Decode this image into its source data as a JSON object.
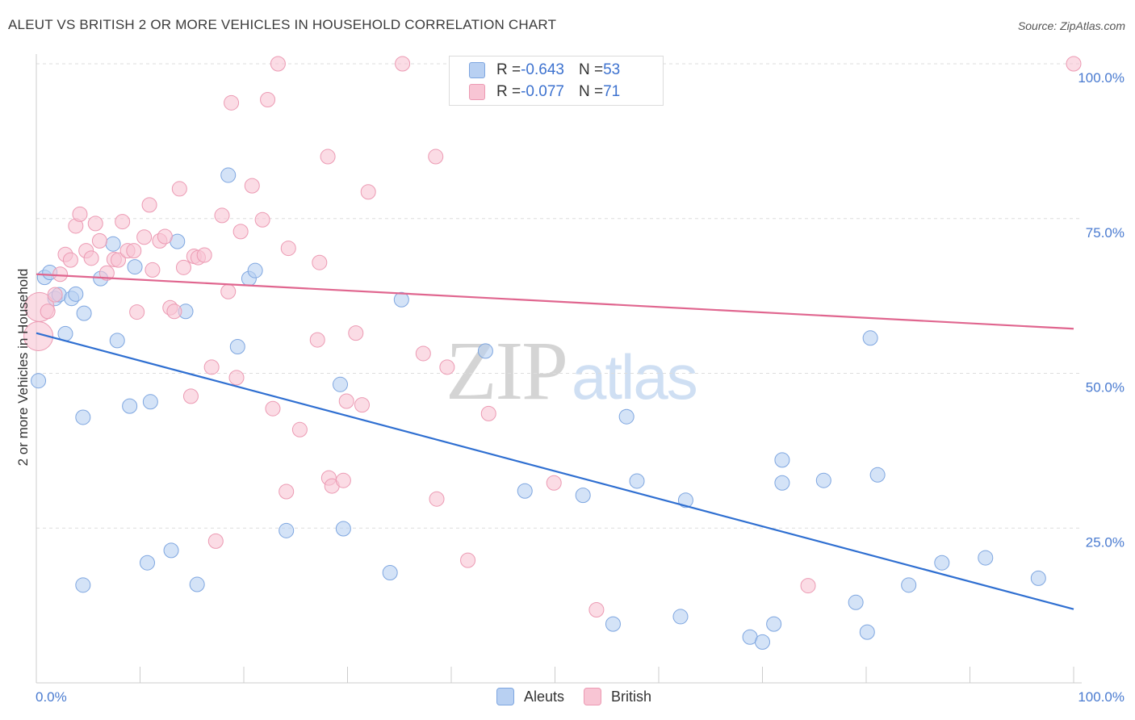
{
  "header": {
    "title": "ALEUT VS BRITISH 2 OR MORE VEHICLES IN HOUSEHOLD CORRELATION CHART",
    "source": "Source: ZipAtlas.com"
  },
  "legend": {
    "rows": [
      {
        "r_label": "R = ",
        "r_value": "-0.643",
        "n_label": "N = ",
        "n_value": "53"
      },
      {
        "r_label": "R = ",
        "r_value": "-0.077",
        "n_label": "N = ",
        "n_value": "71"
      }
    ],
    "items": [
      "Aleuts",
      "British"
    ]
  },
  "watermark": {
    "part1": "ZIP",
    "part2": "atlas"
  },
  "colors": {
    "aleuts_fill": "#b8d0f2",
    "aleuts_stroke": "#7ea6e0",
    "aleuts_line": "#2f6fd1",
    "british_fill": "#f8c5d4",
    "british_stroke": "#ec9ab3",
    "british_line": "#e0668f",
    "grid": "#dddddd",
    "tick_text": "#4a7bd0"
  },
  "chart_data": {
    "type": "scatter",
    "title": "ALEUT VS BRITISH 2 OR MORE VEHICLES IN HOUSEHOLD CORRELATION CHART",
    "xlabel": "",
    "ylabel": "2 or more Vehicles in Household",
    "xlim": [
      0,
      100
    ],
    "ylim": [
      0,
      100
    ],
    "x_tick_labels": [
      "0.0%",
      "100.0%"
    ],
    "y_tick_labels": [
      "100.0%",
      "75.0%",
      "50.0%",
      "25.0%"
    ],
    "y_ticks": [
      100,
      75,
      50,
      25
    ],
    "grid": true,
    "legend_position": "top-center",
    "series": [
      {
        "name": "Aleuts",
        "r": -0.643,
        "n": 53,
        "trend": {
          "x": [
            0,
            100
          ],
          "y": [
            56.5,
            11.9
          ]
        },
        "points": [
          [
            0.2,
            48.8
          ],
          [
            0.8,
            65.5
          ],
          [
            1.3,
            66.3
          ],
          [
            1.8,
            62.1
          ],
          [
            2.2,
            62.7
          ],
          [
            2.8,
            56.4
          ],
          [
            3.4,
            62.1
          ],
          [
            3.8,
            62.8
          ],
          [
            4.6,
            59.7
          ],
          [
            4.5,
            42.9
          ],
          [
            4.5,
            15.8
          ],
          [
            6.2,
            65.3
          ],
          [
            7.4,
            70.9
          ],
          [
            7.8,
            55.3
          ],
          [
            9.0,
            44.7
          ],
          [
            9.5,
            67.2
          ],
          [
            10.7,
            19.4
          ],
          [
            11.0,
            45.4
          ],
          [
            13.0,
            21.4
          ],
          [
            13.6,
            71.3
          ],
          [
            14.4,
            60.0
          ],
          [
            15.5,
            15.9
          ],
          [
            18.5,
            82.0
          ],
          [
            19.4,
            54.3
          ],
          [
            20.5,
            65.3
          ],
          [
            21.1,
            66.6
          ],
          [
            24.1,
            24.6
          ],
          [
            29.6,
            24.9
          ],
          [
            29.3,
            48.2
          ],
          [
            34.1,
            17.8
          ],
          [
            35.2,
            61.9
          ],
          [
            43.3,
            53.6
          ],
          [
            47.1,
            31.0
          ],
          [
            52.7,
            30.3
          ],
          [
            55.6,
            9.5
          ],
          [
            56.9,
            43.0
          ],
          [
            57.9,
            32.6
          ],
          [
            62.1,
            10.7
          ],
          [
            62.6,
            29.5
          ],
          [
            68.8,
            7.4
          ],
          [
            70.0,
            6.6
          ],
          [
            71.1,
            9.5
          ],
          [
            71.9,
            36.0
          ],
          [
            71.9,
            32.3
          ],
          [
            75.9,
            32.7
          ],
          [
            79.0,
            13.0
          ],
          [
            80.1,
            8.2
          ],
          [
            80.4,
            55.7
          ],
          [
            81.1,
            33.6
          ],
          [
            84.1,
            15.8
          ],
          [
            87.3,
            19.4
          ],
          [
            91.5,
            20.2
          ],
          [
            96.6,
            16.9
          ]
        ]
      },
      {
        "name": "British",
        "r": -0.077,
        "n": 71,
        "trend": {
          "x": [
            0,
            100
          ],
          "y": [
            66.0,
            57.2
          ]
        },
        "points": [
          [
            0.2,
            56.0
          ],
          [
            0.3,
            60.7
          ],
          [
            1.1,
            60.0
          ],
          [
            1.8,
            62.7
          ],
          [
            2.3,
            66.0
          ],
          [
            2.8,
            69.2
          ],
          [
            3.3,
            68.3
          ],
          [
            3.8,
            73.8
          ],
          [
            4.2,
            75.7
          ],
          [
            4.8,
            69.8
          ],
          [
            5.3,
            68.6
          ],
          [
            5.7,
            74.2
          ],
          [
            6.1,
            71.4
          ],
          [
            6.8,
            66.2
          ],
          [
            7.5,
            68.4
          ],
          [
            7.9,
            68.3
          ],
          [
            8.3,
            74.5
          ],
          [
            8.8,
            69.8
          ],
          [
            9.4,
            69.8
          ],
          [
            9.7,
            59.9
          ],
          [
            10.4,
            72.0
          ],
          [
            10.9,
            77.2
          ],
          [
            11.2,
            66.7
          ],
          [
            11.9,
            71.4
          ],
          [
            12.4,
            72.1
          ],
          [
            12.9,
            60.6
          ],
          [
            13.3,
            60.0
          ],
          [
            13.8,
            79.8
          ],
          [
            14.2,
            67.1
          ],
          [
            14.9,
            46.3
          ],
          [
            15.2,
            68.9
          ],
          [
            15.6,
            68.7
          ],
          [
            16.2,
            69.1
          ],
          [
            16.9,
            51.0
          ],
          [
            17.3,
            22.9
          ],
          [
            17.9,
            75.5
          ],
          [
            18.5,
            63.2
          ],
          [
            18.8,
            93.7
          ],
          [
            19.3,
            49.3
          ],
          [
            19.7,
            72.9
          ],
          [
            20.8,
            80.3
          ],
          [
            21.8,
            74.8
          ],
          [
            22.3,
            94.2
          ],
          [
            22.8,
            44.3
          ],
          [
            23.3,
            100.0
          ],
          [
            24.1,
            30.9
          ],
          [
            24.3,
            70.2
          ],
          [
            25.4,
            40.9
          ],
          [
            27.1,
            55.4
          ],
          [
            27.3,
            67.9
          ],
          [
            28.1,
            85.0
          ],
          [
            28.2,
            33.1
          ],
          [
            28.5,
            31.8
          ],
          [
            29.6,
            32.7
          ],
          [
            29.9,
            45.5
          ],
          [
            30.8,
            56.5
          ],
          [
            31.4,
            44.9
          ],
          [
            32.0,
            79.3
          ],
          [
            35.3,
            100.0
          ],
          [
            37.3,
            53.2
          ],
          [
            38.5,
            85.0
          ],
          [
            38.6,
            29.7
          ],
          [
            39.6,
            51.0
          ],
          [
            41.6,
            19.8
          ],
          [
            43.6,
            43.5
          ],
          [
            47.1,
            100.0
          ],
          [
            48.3,
            100.0
          ],
          [
            49.9,
            32.3
          ],
          [
            54.0,
            11.8
          ],
          [
            74.4,
            15.7
          ],
          [
            100.0,
            100.0
          ]
        ]
      }
    ]
  }
}
